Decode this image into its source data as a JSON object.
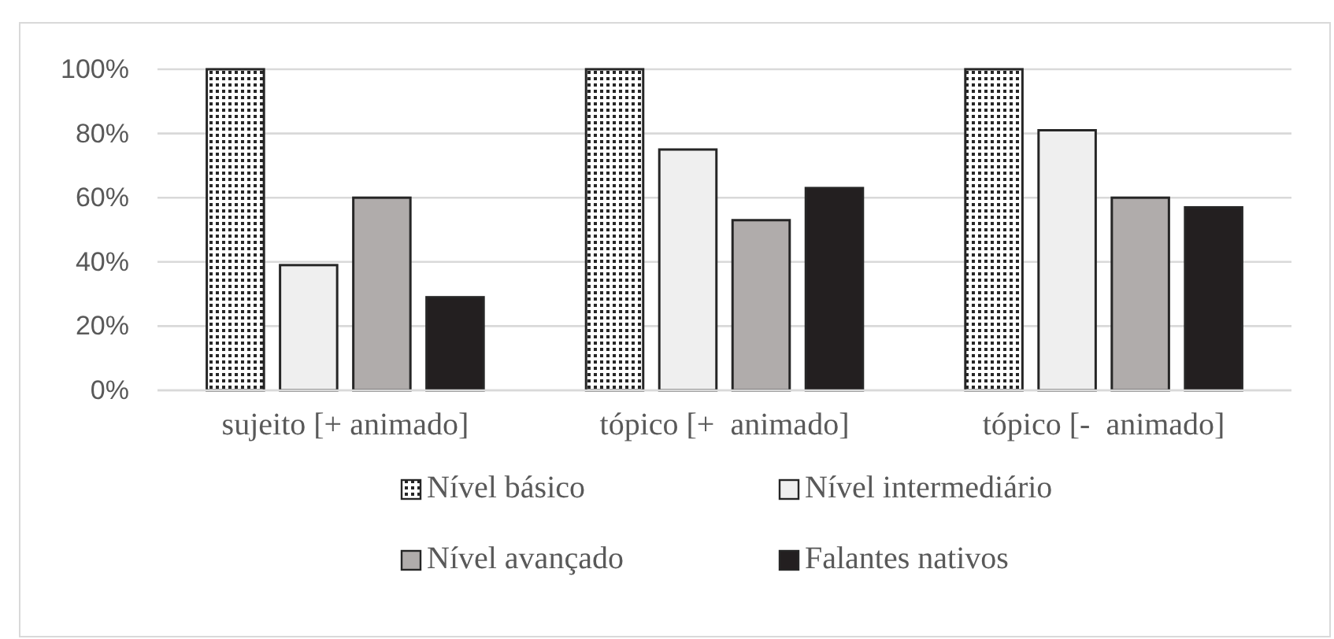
{
  "chart_data": {
    "type": "bar",
    "categories": [
      "sujeito [+ animado]",
      "tópico [+  animado]",
      "tópico [-  animado]"
    ],
    "series": [
      {
        "name": "Nível básico",
        "color": "#262626",
        "values": [
          100,
          100,
          100
        ]
      },
      {
        "name": "Nível intermediário",
        "color": "#efefef",
        "values": [
          39,
          75,
          81
        ]
      },
      {
        "name": "Nível avançado",
        "color": "#b0acab",
        "values": [
          60,
          53,
          60
        ]
      },
      {
        "name": "Falantes nativos",
        "color": "#231f20",
        "values": [
          29,
          63,
          57
        ]
      }
    ],
    "ylim": [
      0,
      100
    ],
    "yticks": [
      {
        "value": 0,
        "label": "0%"
      },
      {
        "value": 20,
        "label": "20%"
      },
      {
        "value": 40,
        "label": "40%"
      },
      {
        "value": 60,
        "label": "60%"
      },
      {
        "value": 80,
        "label": "80%"
      },
      {
        "value": 100,
        "label": "100%"
      }
    ],
    "grid": "y",
    "legend": "bottom"
  }
}
